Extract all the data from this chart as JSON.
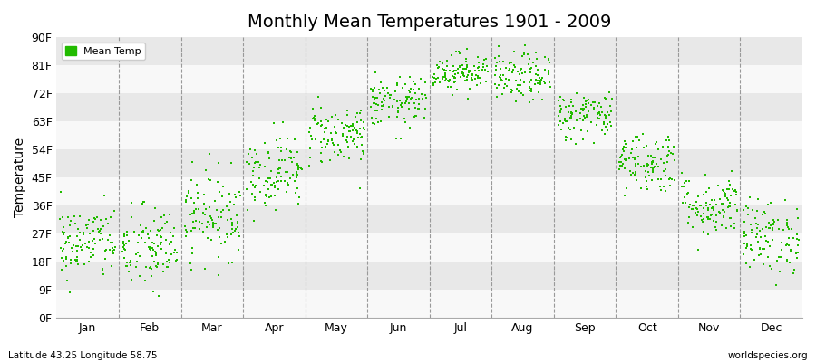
{
  "title": "Monthly Mean Temperatures 1901 - 2009",
  "ylabel": "Temperature",
  "xlabel_months": [
    "Jan",
    "Feb",
    "Mar",
    "Apr",
    "May",
    "Jun",
    "Jul",
    "Aug",
    "Sep",
    "Oct",
    "Nov",
    "Dec"
  ],
  "ytick_labels": [
    "0F",
    "9F",
    "18F",
    "27F",
    "36F",
    "45F",
    "54F",
    "63F",
    "72F",
    "81F",
    "90F"
  ],
  "ytick_values": [
    0,
    9,
    18,
    27,
    36,
    45,
    54,
    63,
    72,
    81,
    90
  ],
  "ylim": [
    0,
    90
  ],
  "dot_color": "#22bb00",
  "dot_size": 3,
  "background_color": "#ffffff",
  "plot_bg_color": "#f0f0f0",
  "band_color_light": "#f8f8f8",
  "band_color_dark": "#e8e8e8",
  "dashed_line_color": "#999999",
  "legend_label": "Mean Temp",
  "footer_left": "Latitude 43.25 Longitude 58.75",
  "footer_right": "worldspecies.org",
  "title_fontsize": 14,
  "years": 109,
  "monthly_means_F": [
    24,
    22,
    33,
    47,
    59,
    69,
    79,
    77,
    65,
    50,
    36,
    26
  ],
  "monthly_stds_F": [
    6,
    7,
    7,
    6,
    5,
    4,
    3,
    4,
    4,
    5,
    5,
    6
  ]
}
